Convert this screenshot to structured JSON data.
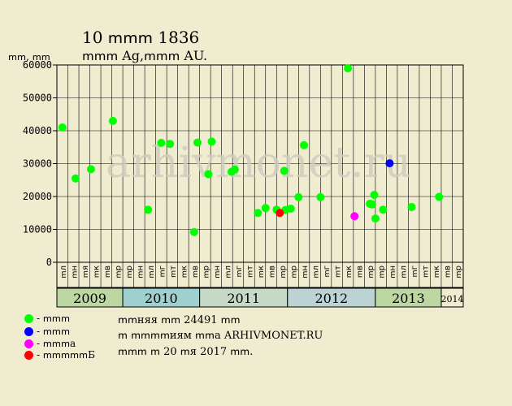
{
  "title": "10 ՠՠՠ 1836",
  "subtitle": "ՠՠՠ Ag,ՠՠՠ AU.",
  "y_unit": "ՠՠ, ՠՠ",
  "watermark": "arhivmonet.ru",
  "legend": [
    {
      "label": "- ՠՠՠ",
      "color": "#00ff00"
    },
    {
      "label": "- ՠՠՠ",
      "color": "#0000ff"
    },
    {
      "label": "- ՠՠՠa",
      "color": "#ff00ff"
    },
    {
      "label": "- ՠՠՠՠՠБ",
      "color": "#ff0000"
    }
  ],
  "notes": [
    "ՠՠняя ՠՠ 24491 ՠՠ",
    "ՠ ՠՠՠՠиям ՠՠa ARHIVMONET.RU",
    "ՠՠՠ ՠ 20 ՠя 2017 ՠՠ."
  ],
  "chart_data": {
    "type": "scatter",
    "ylim": [
      0,
      60000
    ],
    "yticks": [
      0,
      10000,
      20000,
      30000,
      40000,
      50000,
      60000
    ],
    "grid": true,
    "month_labels": [
      "ՠл",
      "ՠн",
      "ՠя",
      "ՠк",
      "ՠв",
      "ՠр",
      "ՠр",
      "ՠн",
      "ՠл",
      "ՠг",
      "ՠт",
      "ՠк",
      "ՠв",
      "ՠр",
      "ՠн",
      "ՠл",
      "ՠг",
      "ՠт",
      "ՠк",
      "ՠв",
      "ՠр",
      "ՠр",
      "ՠн",
      "ՠл",
      "ՠг",
      "ՠт",
      "ՠк",
      "ՠв",
      "ՠр",
      "ՠр",
      "ՠн",
      "ՠл",
      "ՠг",
      "ՠт",
      "ՠк",
      "ՠв",
      "ՠр"
    ],
    "years": [
      {
        "label": "2009",
        "start": 0,
        "end": 6,
        "color": "#bdd7a3"
      },
      {
        "label": "2010",
        "start": 6,
        "end": 13,
        "color": "#9fd0d0"
      },
      {
        "label": "2011",
        "start": 13,
        "end": 21,
        "color": "#c6d8c6"
      },
      {
        "label": "2012",
        "start": 21,
        "end": 29,
        "color": "#bcd3d3"
      },
      {
        "label": "2013",
        "start": 29,
        "end": 35,
        "color": "#bdd7a3"
      },
      {
        "label": "2014",
        "start": 35,
        "end": 37,
        "color": "#f0ecd0"
      }
    ],
    "series": [
      {
        "color": "#00ff00",
        "points": [
          [
            0.5,
            41000
          ],
          [
            1.7,
            25500
          ],
          [
            3.1,
            28300
          ],
          [
            5.1,
            43000
          ],
          [
            8.3,
            16000
          ],
          [
            9.5,
            36300
          ],
          [
            10.3,
            36000
          ],
          [
            12.5,
            9200
          ],
          [
            12.8,
            36400
          ],
          [
            13.8,
            26800
          ],
          [
            14.1,
            36700
          ],
          [
            15.9,
            27500
          ],
          [
            16.2,
            28200
          ],
          [
            18.3,
            15000
          ],
          [
            19.0,
            16500
          ],
          [
            20.0,
            16000
          ],
          [
            20.7,
            27800
          ],
          [
            20.8,
            15900
          ],
          [
            21.3,
            16300
          ],
          [
            22.0,
            19800
          ],
          [
            22.5,
            35600
          ],
          [
            24.0,
            19800
          ],
          [
            26.5,
            59000
          ],
          [
            28.5,
            17800
          ],
          [
            28.7,
            17600
          ],
          [
            28.9,
            20500
          ],
          [
            29.0,
            13300
          ],
          [
            29.7,
            16000
          ],
          [
            32.3,
            16800
          ],
          [
            34.8,
            19900
          ]
        ]
      },
      {
        "color": "#0000ff",
        "points": [
          [
            30.3,
            30100
          ]
        ]
      },
      {
        "color": "#ff00ff",
        "points": [
          [
            27.1,
            14000
          ]
        ]
      },
      {
        "color": "#ff0000",
        "points": [
          [
            20.3,
            15000
          ]
        ]
      }
    ]
  }
}
